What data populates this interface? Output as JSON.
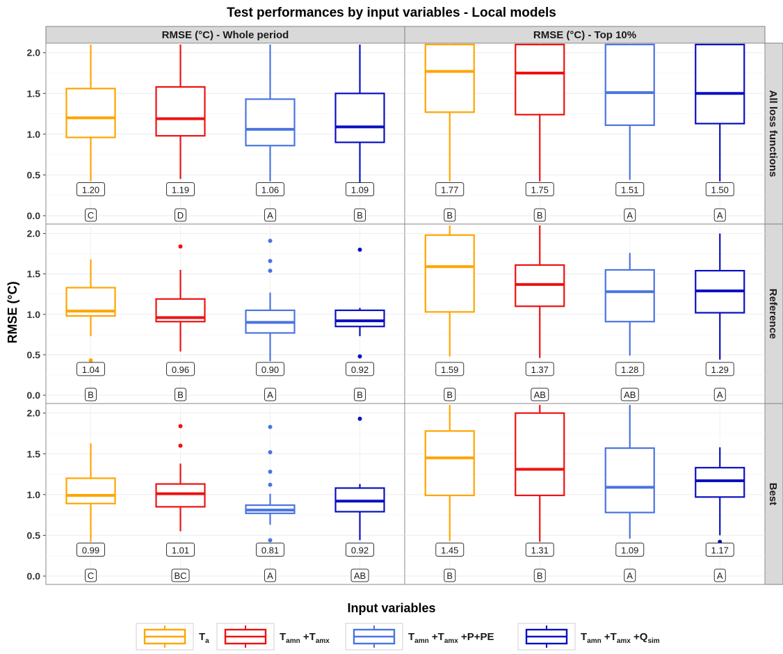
{
  "chart_data": {
    "type": "boxplot",
    "title": "Test performances by input variables - Local models",
    "ylabel": "RMSE (°C)",
    "ylim": [
      0,
      2.1
    ],
    "yticks": [
      "0.0",
      "0.5",
      "1.0",
      "1.5",
      "2.0"
    ],
    "grid": true,
    "columns": [
      "RMSE (°C) - Whole period",
      "RMSE (°C) - Top 10%"
    ],
    "rows": [
      "All loss functions",
      "Reference",
      "Best"
    ],
    "legend": {
      "title": "Input variables",
      "position": "bottom",
      "items": [
        {
          "parts": [
            {
              "t": "T",
              "sub": false
            },
            {
              "t": "a",
              "sub": true
            }
          ],
          "color": "#FFA500"
        },
        {
          "parts": [
            {
              "t": "T",
              "sub": false
            },
            {
              "t": "amn",
              "sub": true
            },
            {
              "t": " +T",
              "sub": false
            },
            {
              "t": "amx",
              "sub": true
            }
          ],
          "color": "#EE1111"
        },
        {
          "parts": [
            {
              "t": "T",
              "sub": false
            },
            {
              "t": "amn",
              "sub": true
            },
            {
              "t": " +T",
              "sub": false
            },
            {
              "t": "amx",
              "sub": true
            },
            {
              "t": " +P+PE",
              "sub": false
            }
          ],
          "color": "#4A74E0"
        },
        {
          "parts": [
            {
              "t": "T",
              "sub": false
            },
            {
              "t": "amn",
              "sub": true
            },
            {
              "t": " +T",
              "sub": false
            },
            {
              "t": "amx",
              "sub": true
            },
            {
              "t": " +Q",
              "sub": false
            },
            {
              "t": "sim",
              "sub": true
            }
          ],
          "color": "#0A0FC0"
        }
      ]
    },
    "panels": [
      {
        "row": 0,
        "col": 0,
        "boxes": [
          {
            "q1": 0.96,
            "med": 1.2,
            "q3": 1.56,
            "wlo": 0.42,
            "whi": 2.1,
            "out": [],
            "label": "1.20",
            "group": "C"
          },
          {
            "q1": 0.98,
            "med": 1.19,
            "q3": 1.58,
            "wlo": 0.45,
            "whi": 2.1,
            "out": [],
            "label": "1.19",
            "group": "D"
          },
          {
            "q1": 0.86,
            "med": 1.06,
            "q3": 1.43,
            "wlo": 0.42,
            "whi": 2.1,
            "out": [],
            "label": "1.06",
            "group": "A"
          },
          {
            "q1": 0.9,
            "med": 1.09,
            "q3": 1.5,
            "wlo": 0.38,
            "whi": 2.1,
            "out": [],
            "label": "1.09",
            "group": "B"
          }
        ]
      },
      {
        "row": 0,
        "col": 1,
        "boxes": [
          {
            "q1": 1.27,
            "med": 1.77,
            "q3": 2.1,
            "wlo": 0.42,
            "whi": 2.1,
            "out": [],
            "label": "1.77",
            "group": "B"
          },
          {
            "q1": 1.24,
            "med": 1.75,
            "q3": 2.1,
            "wlo": 0.42,
            "whi": 2.1,
            "out": [],
            "label": "1.75",
            "group": "B"
          },
          {
            "q1": 1.11,
            "med": 1.51,
            "q3": 2.1,
            "wlo": 0.44,
            "whi": 2.1,
            "out": [],
            "label": "1.51",
            "group": "A"
          },
          {
            "q1": 1.13,
            "med": 1.5,
            "q3": 2.1,
            "wlo": 0.42,
            "whi": 2.1,
            "out": [],
            "label": "1.50",
            "group": "A"
          }
        ]
      },
      {
        "row": 1,
        "col": 0,
        "boxes": [
          {
            "q1": 0.98,
            "med": 1.04,
            "q3": 1.33,
            "wlo": 0.73,
            "whi": 1.68,
            "out": [
              0.43
            ],
            "label": "1.04",
            "group": "B"
          },
          {
            "q1": 0.91,
            "med": 0.96,
            "q3": 1.19,
            "wlo": 0.54,
            "whi": 1.55,
            "out": [
              1.84
            ],
            "label": "0.96",
            "group": "B"
          },
          {
            "q1": 0.77,
            "med": 0.9,
            "q3": 1.05,
            "wlo": 0.42,
            "whi": 1.27,
            "out": [
              1.54,
              1.66,
              1.91
            ],
            "label": "0.90",
            "group": "A"
          },
          {
            "q1": 0.85,
            "med": 0.92,
            "q3": 1.05,
            "wlo": 0.73,
            "whi": 1.08,
            "out": [
              0.48,
              1.8
            ],
            "label": "0.92",
            "group": "B"
          }
        ]
      },
      {
        "row": 1,
        "col": 1,
        "boxes": [
          {
            "q1": 1.03,
            "med": 1.59,
            "q3": 1.98,
            "wlo": 0.48,
            "whi": 2.1,
            "out": [],
            "label": "1.59",
            "group": "B"
          },
          {
            "q1": 1.1,
            "med": 1.37,
            "q3": 1.61,
            "wlo": 0.46,
            "whi": 2.1,
            "out": [],
            "label": "1.37",
            "group": "AB"
          },
          {
            "q1": 0.91,
            "med": 1.28,
            "q3": 1.55,
            "wlo": 0.49,
            "whi": 1.76,
            "out": [],
            "label": "1.28",
            "group": "AB"
          },
          {
            "q1": 1.02,
            "med": 1.29,
            "q3": 1.54,
            "wlo": 0.44,
            "whi": 2.0,
            "out": [],
            "label": "1.29",
            "group": "A"
          }
        ]
      },
      {
        "row": 2,
        "col": 0,
        "boxes": [
          {
            "q1": 0.89,
            "med": 0.99,
            "q3": 1.2,
            "wlo": 0.42,
            "whi": 1.63,
            "out": [],
            "label": "0.99",
            "group": "C"
          },
          {
            "q1": 0.85,
            "med": 1.01,
            "q3": 1.13,
            "wlo": 0.55,
            "whi": 1.38,
            "out": [
              1.6,
              1.84
            ],
            "label": "1.01",
            "group": "BC"
          },
          {
            "q1": 0.77,
            "med": 0.81,
            "q3": 0.87,
            "wlo": 0.63,
            "whi": 1.01,
            "out": [
              0.44,
              1.12,
              1.28,
              1.52,
              1.83
            ],
            "label": "0.81",
            "group": "A"
          },
          {
            "q1": 0.79,
            "med": 0.92,
            "q3": 1.08,
            "wlo": 0.44,
            "whi": 1.13,
            "out": [
              1.93
            ],
            "label": "0.92",
            "group": "AB"
          }
        ]
      },
      {
        "row": 2,
        "col": 1,
        "boxes": [
          {
            "q1": 0.99,
            "med": 1.45,
            "q3": 1.78,
            "wlo": 0.43,
            "whi": 2.1,
            "out": [],
            "label": "1.45",
            "group": "B"
          },
          {
            "q1": 0.99,
            "med": 1.31,
            "q3": 2.0,
            "wlo": 0.42,
            "whi": 2.1,
            "out": [],
            "label": "1.31",
            "group": "B"
          },
          {
            "q1": 0.78,
            "med": 1.09,
            "q3": 1.57,
            "wlo": 0.46,
            "whi": 2.1,
            "out": [],
            "label": "1.09",
            "group": "A"
          },
          {
            "q1": 0.97,
            "med": 1.17,
            "q3": 1.33,
            "wlo": 0.5,
            "whi": 1.58,
            "out": [
              0.42
            ],
            "label": "1.17",
            "group": "A"
          }
        ]
      }
    ]
  }
}
